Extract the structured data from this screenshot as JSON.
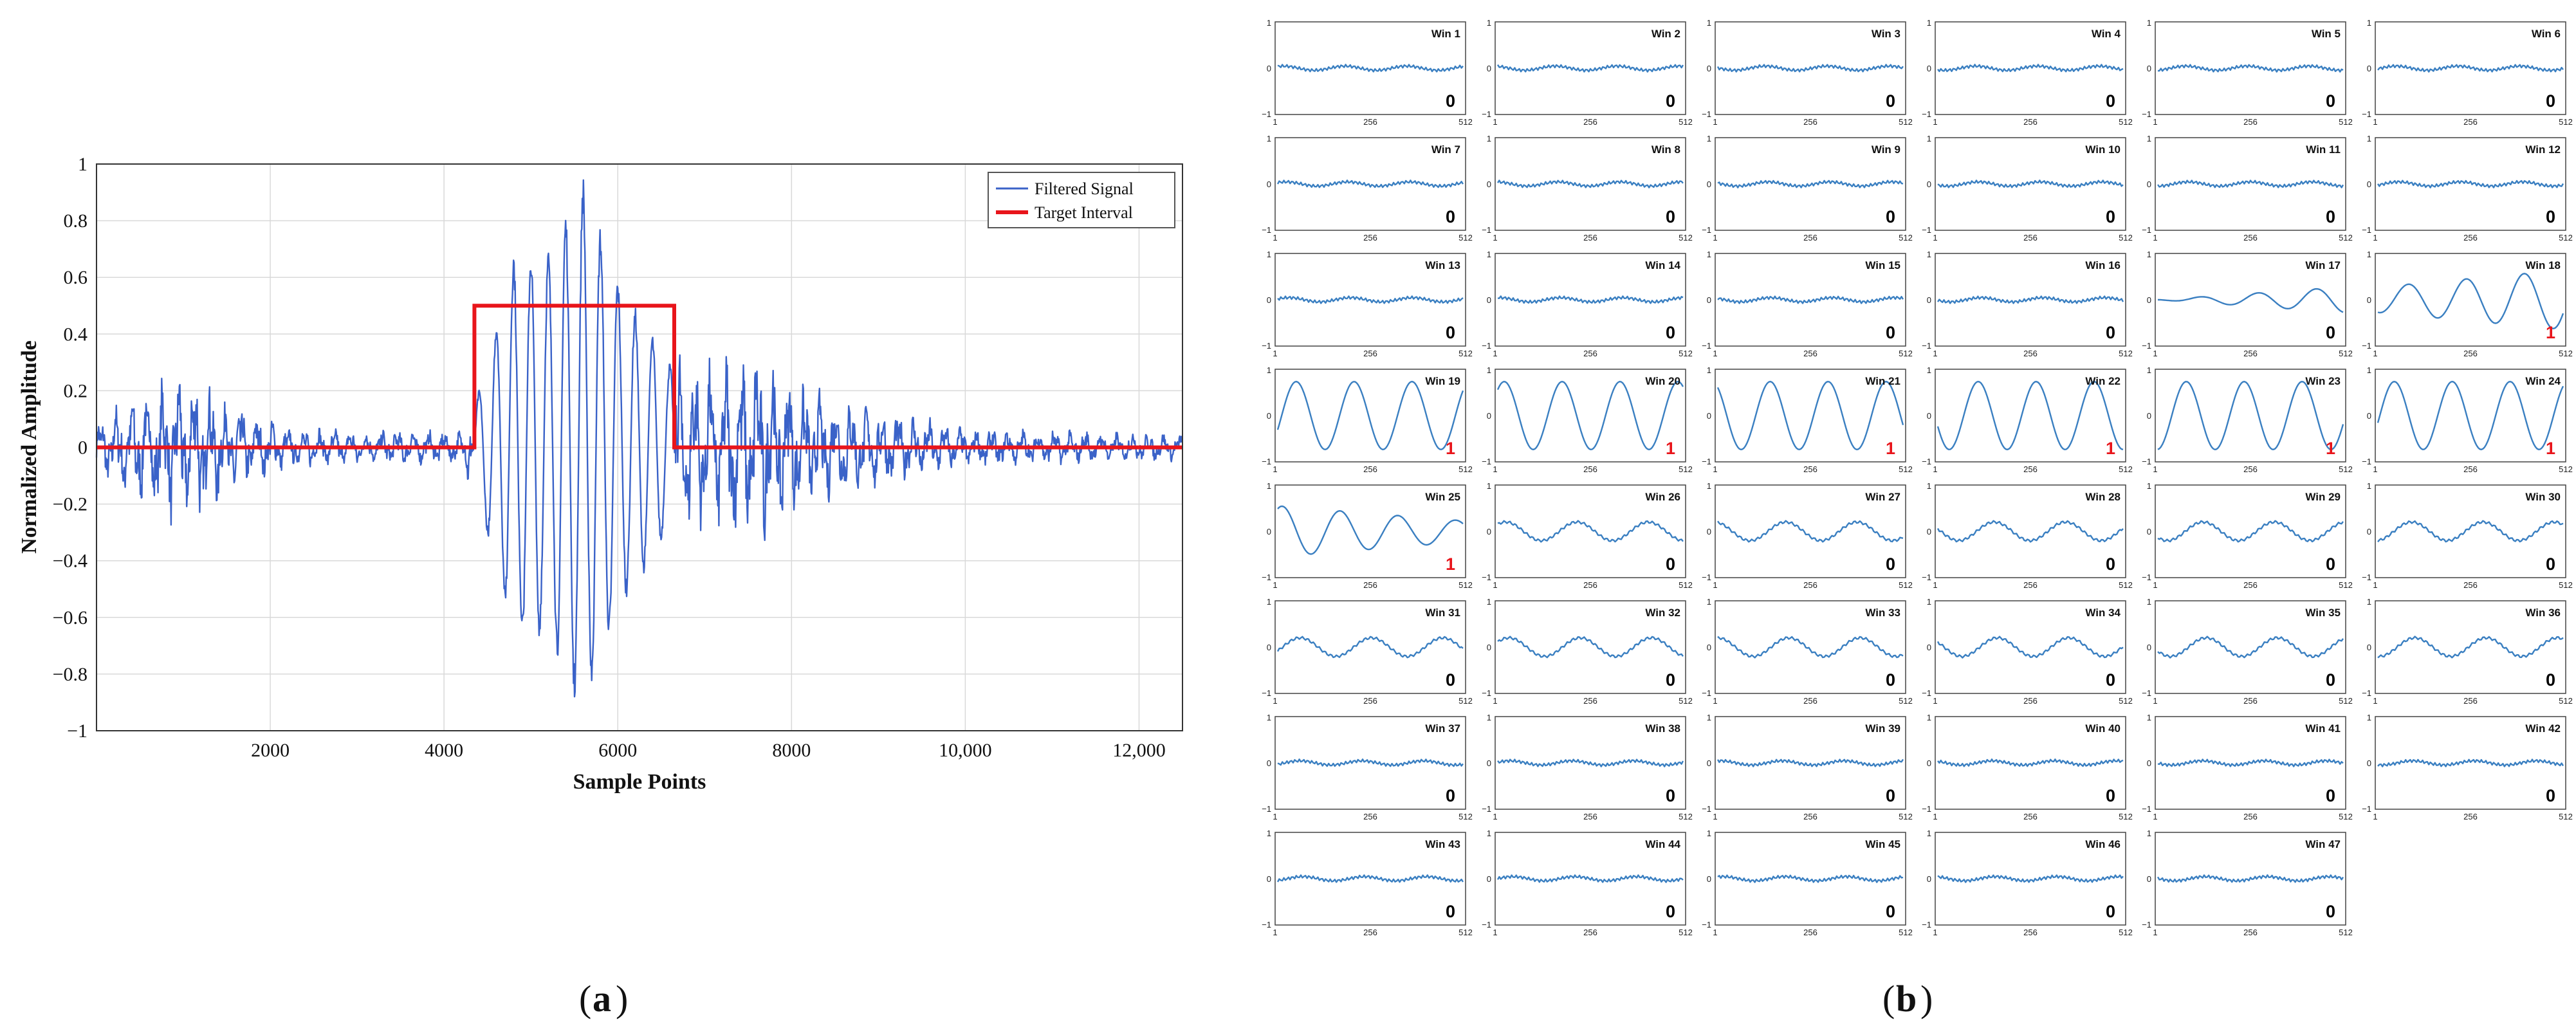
{
  "panel_a": {
    "caption": "a",
    "chart_data": {
      "type": "line",
      "xlabel": "Sample Points",
      "ylabel": "Normalized Amplitude",
      "xlim": [
        0,
        12500
      ],
      "ylim": [
        -1,
        1
      ],
      "xticks": [
        2000,
        4000,
        6000,
        8000,
        10000,
        12000
      ],
      "xtick_labels": [
        "2000",
        "4000",
        "6000",
        "8000",
        "10,000",
        "12,000"
      ],
      "yticks": [
        -1,
        -0.8,
        -0.6,
        -0.4,
        -0.2,
        0,
        0.2,
        0.4,
        0.6,
        0.8,
        1
      ],
      "ytick_labels": [
        "−1",
        "−0.8",
        "−0.6",
        "−0.4",
        "−0.2",
        "0",
        "0.2",
        "0.4",
        "0.6",
        "0.8",
        "1"
      ],
      "grid": true,
      "legend_position": "top-right",
      "series": [
        {
          "name": "Filtered Signal",
          "color": "#3a62c8",
          "envelope": [
            {
              "x": 0,
              "amp": 0.08
            },
            {
              "x": 300,
              "amp": 0.15
            },
            {
              "x": 700,
              "amp": 0.2
            },
            {
              "x": 1100,
              "amp": 0.25
            },
            {
              "x": 1500,
              "amp": 0.15
            },
            {
              "x": 2200,
              "amp": 0.06
            },
            {
              "x": 4200,
              "amp": 0.05
            },
            {
              "x": 4400,
              "amp": 0.2
            },
            {
              "x": 4800,
              "amp": 0.7
            },
            {
              "x": 5200,
              "amp": 0.7
            },
            {
              "x": 5600,
              "amp": 0.97
            },
            {
              "x": 6000,
              "amp": 0.6
            },
            {
              "x": 6600,
              "amp": 0.3
            },
            {
              "x": 7000,
              "amp": 0.25
            },
            {
              "x": 7600,
              "amp": 0.3
            },
            {
              "x": 8200,
              "amp": 0.18
            },
            {
              "x": 9000,
              "amp": 0.12
            },
            {
              "x": 10000,
              "amp": 0.06
            },
            {
              "x": 12500,
              "amp": 0.04
            }
          ]
        },
        {
          "name": "Target Interval",
          "color": "#e8151b",
          "points": [
            [
              0,
              0
            ],
            [
              4350,
              0
            ],
            [
              4350,
              0.5
            ],
            [
              6650,
              0.5
            ],
            [
              6650,
              0
            ],
            [
              12500,
              0
            ]
          ]
        }
      ]
    }
  },
  "panel_b": {
    "caption": "b",
    "chart_data": {
      "type": "line",
      "layout": "small-multiples grid, 6 columns",
      "x_range": [
        1,
        512
      ],
      "xtick_labels": [
        "1",
        "256",
        "512"
      ],
      "ytick_labels": [
        "1",
        "0",
        "−1"
      ],
      "line_color": "#3a7fc1",
      "label_colors": {
        "0": "#000000",
        "1": "#e8151b"
      },
      "windows": [
        {
          "title": "Win 1",
          "label": "0"
        },
        {
          "title": "Win 2",
          "label": "0"
        },
        {
          "title": "Win 3",
          "label": "0"
        },
        {
          "title": "Win 4",
          "label": "0"
        },
        {
          "title": "Win 5",
          "label": "0"
        },
        {
          "title": "Win 6",
          "label": "0"
        },
        {
          "title": "Win 7",
          "label": "0"
        },
        {
          "title": "Win 8",
          "label": "0"
        },
        {
          "title": "Win 9",
          "label": "0"
        },
        {
          "title": "Win 10",
          "label": "0"
        },
        {
          "title": "Win 11",
          "label": "0"
        },
        {
          "title": "Win 12",
          "label": "0"
        },
        {
          "title": "Win 13",
          "label": "0"
        },
        {
          "title": "Win 14",
          "label": "0"
        },
        {
          "title": "Win 15",
          "label": "0"
        },
        {
          "title": "Win 16",
          "label": "0"
        },
        {
          "title": "Win 17",
          "label": "0"
        },
        {
          "title": "Win 18",
          "label": "1"
        },
        {
          "title": "Win 19",
          "label": "1"
        },
        {
          "title": "Win 20",
          "label": "1"
        },
        {
          "title": "Win 21",
          "label": "1"
        },
        {
          "title": "Win 22",
          "label": "1"
        },
        {
          "title": "Win 23",
          "label": "1"
        },
        {
          "title": "Win 24",
          "label": "1"
        },
        {
          "title": "Win 25",
          "label": "1"
        },
        {
          "title": "Win 26",
          "label": "0"
        },
        {
          "title": "Win 27",
          "label": "0"
        },
        {
          "title": "Win 28",
          "label": "0"
        },
        {
          "title": "Win 29",
          "label": "0"
        },
        {
          "title": "Win 30",
          "label": "0"
        },
        {
          "title": "Win 31",
          "label": "0"
        },
        {
          "title": "Win 32",
          "label": "0"
        },
        {
          "title": "Win 33",
          "label": "0"
        },
        {
          "title": "Win 34",
          "label": "0"
        },
        {
          "title": "Win 35",
          "label": "0"
        },
        {
          "title": "Win 36",
          "label": "0"
        },
        {
          "title": "Win 37",
          "label": "0"
        },
        {
          "title": "Win 38",
          "label": "0"
        },
        {
          "title": "Win 39",
          "label": "0"
        },
        {
          "title": "Win 40",
          "label": "0"
        },
        {
          "title": "Win 41",
          "label": "0"
        },
        {
          "title": "Win 42",
          "label": "0"
        },
        {
          "title": "Win 43",
          "label": "0"
        },
        {
          "title": "Win 44",
          "label": "0"
        },
        {
          "title": "Win 45",
          "label": "0"
        },
        {
          "title": "Win 46",
          "label": "0"
        },
        {
          "title": "Win 47",
          "label": "0"
        }
      ]
    }
  }
}
